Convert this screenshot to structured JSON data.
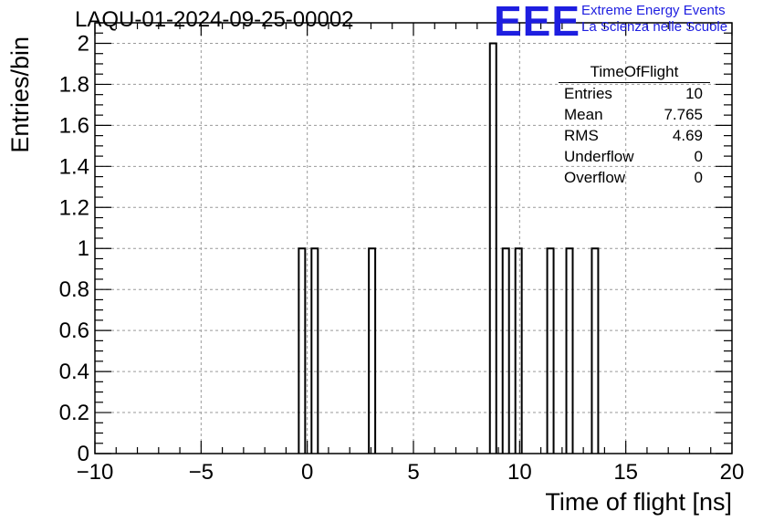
{
  "header": {
    "title": "LAQU-01-2024-09-25-00002",
    "logo_text": "EEE",
    "logo_line1": "Extreme Energy Events",
    "logo_line2": "La Scienza nelle Scuole"
  },
  "stats_box": {
    "title": "TimeOfFlight",
    "rows": [
      {
        "label": "Entries",
        "value": "10"
      },
      {
        "label": "Mean",
        "value": "7.765"
      },
      {
        "label": "RMS",
        "value": "4.69"
      },
      {
        "label": "Underflow",
        "value": "0"
      },
      {
        "label": "Overflow",
        "value": "0"
      }
    ]
  },
  "chart_data": {
    "type": "bar",
    "histogram": true,
    "xlabel": "Time of flight [ns]",
    "ylabel": "Entries/bin",
    "xlim": [
      -10,
      20
    ],
    "ylim": [
      0,
      2.1
    ],
    "bin_width": 0.3,
    "grid": true,
    "x_ticks": [
      -10,
      -5,
      0,
      5,
      10,
      15,
      20
    ],
    "x_tick_labels": [
      "−10",
      "−5",
      "0",
      "5",
      "10",
      "15",
      "20"
    ],
    "y_ticks": [
      0,
      0.2,
      0.4,
      0.6,
      0.8,
      1,
      1.2,
      1.4,
      1.6,
      1.8,
      2
    ],
    "y_tick_labels": [
      "0",
      "0.2",
      "0.4",
      "0.6",
      "0.8",
      "1",
      "1.2",
      "1.4",
      "1.6",
      "1.8",
      "2"
    ],
    "bins": [
      {
        "low": -0.4,
        "high": -0.1,
        "count": 1
      },
      {
        "low": 0.2,
        "high": 0.5,
        "count": 1
      },
      {
        "low": 2.9,
        "high": 3.2,
        "count": 1
      },
      {
        "low": 8.6,
        "high": 8.9,
        "count": 2
      },
      {
        "low": 9.2,
        "high": 9.5,
        "count": 1
      },
      {
        "low": 9.8,
        "high": 10.1,
        "count": 1
      },
      {
        "low": 11.3,
        "high": 11.6,
        "count": 1
      },
      {
        "low": 12.2,
        "high": 12.5,
        "count": 1
      },
      {
        "low": 13.4,
        "high": 13.7,
        "count": 1
      }
    ],
    "line_color": "#000000",
    "grid_color": "#9a9a9a"
  }
}
